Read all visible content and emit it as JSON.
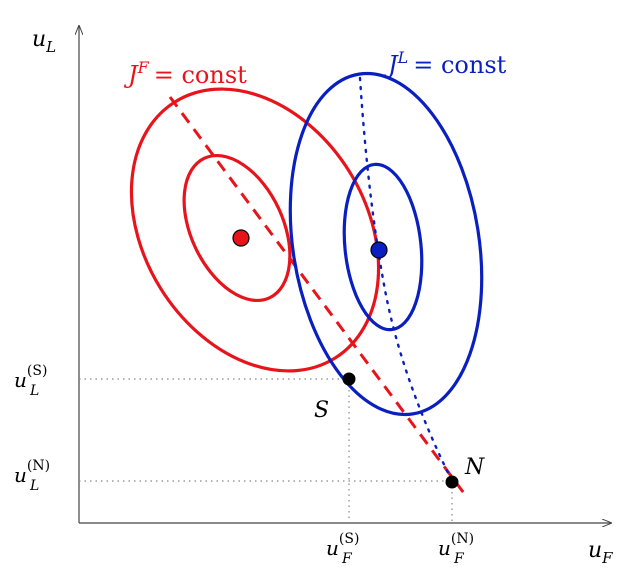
{
  "axes": {
    "y_label": {
      "base": "u",
      "sub": "L"
    },
    "x_label": {
      "base": "u",
      "sub": "F"
    }
  },
  "tick_labels": {
    "uL_S": {
      "base": "u",
      "sub": "L",
      "sup": "(S)"
    },
    "uL_N": {
      "base": "u",
      "sub": "L",
      "sup": "(N)"
    },
    "uF_S": {
      "base": "u",
      "sub": "F",
      "sup": "(S)"
    },
    "uF_N": {
      "base": "u",
      "sub": "F",
      "sup": "(N)"
    }
  },
  "families": {
    "follower": {
      "symbol": "J",
      "sup": "F",
      "eq": "= const",
      "color": "#e8141c"
    },
    "leader": {
      "symbol": "J",
      "sup": "L",
      "eq": "= const",
      "color": "#0a1fbf"
    }
  },
  "points": {
    "stackelberg": {
      "label": "S"
    },
    "nash": {
      "label": "N"
    }
  },
  "colors": {
    "axis": "#444444",
    "guide": "#888888",
    "point": "#000000"
  }
}
